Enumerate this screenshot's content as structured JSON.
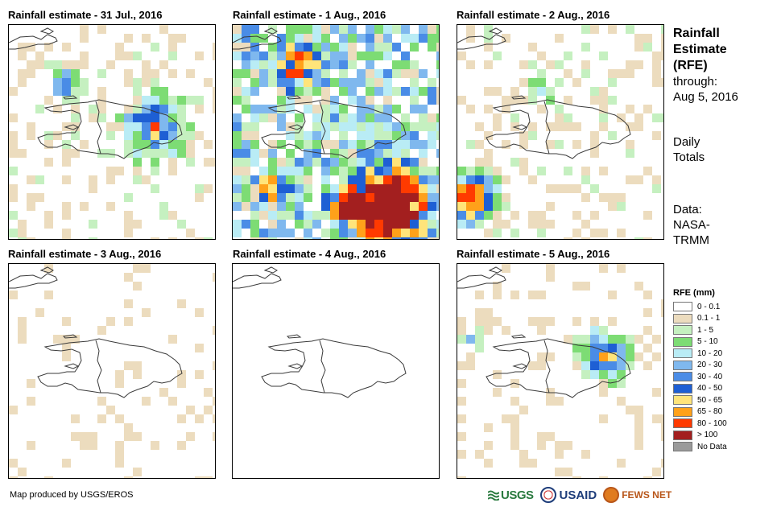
{
  "panels": [
    {
      "title": "Rainfall estimate - 31 Jul., 2016"
    },
    {
      "title": "Rainfall estimate - 1 Aug., 2016"
    },
    {
      "title": "Rainfall estimate - 2 Aug., 2016"
    },
    {
      "title": "Rainfall estimate - 3 Aug., 2016"
    },
    {
      "title": "Rainfall estimate - 4 Aug., 2016"
    },
    {
      "title": "Rainfall estimate - 5 Aug., 2016"
    }
  ],
  "side_info": {
    "title_line1": "Rainfall",
    "title_line2": "Estimate",
    "title_line3": "(RFE)",
    "through_label": "through:",
    "through_date": "Aug 5, 2016",
    "totals_line1": "Daily",
    "totals_line2": "Totals",
    "data_label": "Data:",
    "data_source_line1": "NASA-",
    "data_source_line2": "TRMM"
  },
  "legend": {
    "title": "RFE (mm)",
    "items": [
      {
        "label": "0 - 0.1",
        "color": "#ffffff"
      },
      {
        "label": "0.1 - 1",
        "color": "#ecdcbe"
      },
      {
        "label": "1 - 5",
        "color": "#c5f0c0"
      },
      {
        "label": "5 - 10",
        "color": "#7ddc74"
      },
      {
        "label": "10 - 20",
        "color": "#b9ecf5"
      },
      {
        "label": "20 - 30",
        "color": "#7fb8ee"
      },
      {
        "label": "30 - 40",
        "color": "#4a8ce6"
      },
      {
        "label": "40 - 50",
        "color": "#1e5fd4"
      },
      {
        "label": "50 - 65",
        "color": "#ffe47a"
      },
      {
        "label": "65 - 80",
        "color": "#ffa11a"
      },
      {
        "label": "80 - 100",
        "color": "#ff3a00"
      },
      {
        "label": "> 100",
        "color": "#a31f1f"
      },
      {
        "label": "No Data",
        "color": "#9a9a9a"
      }
    ]
  },
  "footer": {
    "credit": "Map produced by USGS/EROS",
    "logo_usgs": "USGS",
    "logo_usaid": "USAID",
    "logo_fews": "FEWS NET"
  }
}
